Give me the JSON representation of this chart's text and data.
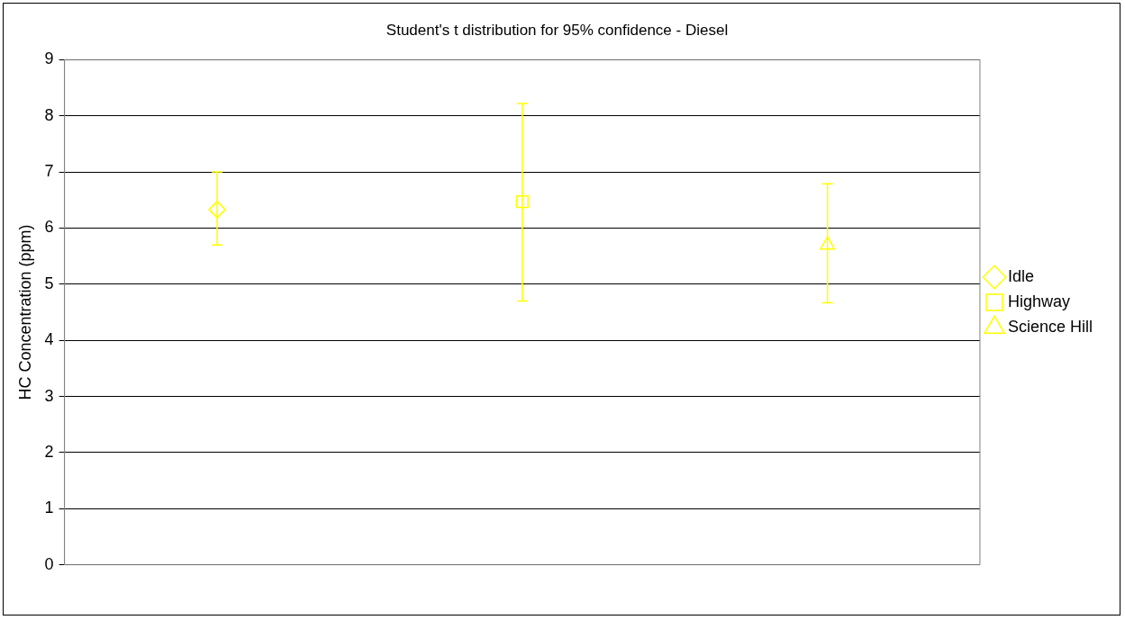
{
  "chart_data": {
    "type": "scatter",
    "title": "Student's t distribution for 95% confidence - Diesel",
    "ylabel": "HC Concentration (ppm)",
    "categories": [
      null,
      null,
      null
    ],
    "series": [
      {
        "name": "Idle",
        "color": "#ffff00",
        "marker": "diamond",
        "values": [
          6.33,
          null,
          null
        ],
        "errors": [
          [
            5.7,
            7.0
          ],
          null,
          null
        ]
      },
      {
        "name": "Highway",
        "color": "#ffff00",
        "marker": "square",
        "values": [
          null,
          6.47,
          null
        ],
        "errors": [
          null,
          [
            4.7,
            8.22
          ],
          null
        ]
      },
      {
        "name": "Science Hill",
        "color": "#ffff00",
        "marker": "triangle",
        "values": [
          null,
          null,
          5.7
        ],
        "errors": [
          null,
          null,
          [
            4.67,
            6.79
          ]
        ]
      }
    ],
    "ylim": [
      0,
      9
    ],
    "yticks": [
      0,
      1,
      2,
      3,
      4,
      5,
      6,
      7,
      8,
      9
    ],
    "grid": "y",
    "legend": "right"
  }
}
